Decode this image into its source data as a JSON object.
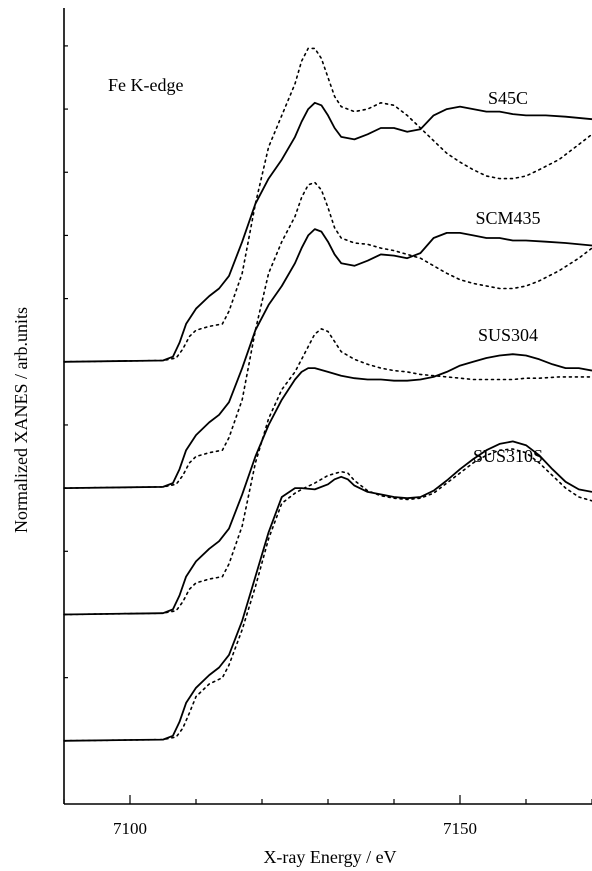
{
  "chart_data": {
    "type": "line",
    "annotation": "Fe K-edge",
    "xlabel": "X-ray Energy / eV",
    "ylabel": "Normalized XANES / arb.units",
    "xlim": [
      7090,
      7170
    ],
    "xticks": [
      7100,
      7150
    ],
    "ylim": [
      -0.5,
      5.8
    ],
    "grid": false,
    "samples": [
      {
        "name": "S45C",
        "offset": 3.0,
        "solid": {
          "x": [
            7090,
            7105,
            7106.5,
            7107.5,
            7108.5,
            7110,
            7112,
            7113.5,
            7115,
            7117,
            7119,
            7121,
            7123,
            7125,
            7126,
            7127,
            7128,
            7129,
            7130,
            7131,
            7132,
            7134,
            7136,
            7138,
            7140,
            7142,
            7144,
            7146,
            7148,
            7150,
            7152,
            7154,
            7156,
            7158,
            7160,
            7163,
            7166,
            7170
          ],
          "y": [
            0,
            0.01,
            0.04,
            0.15,
            0.3,
            0.42,
            0.52,
            0.58,
            0.68,
            0.95,
            1.25,
            1.45,
            1.6,
            1.78,
            1.9,
            2.0,
            2.05,
            2.03,
            1.95,
            1.85,
            1.78,
            1.76,
            1.8,
            1.85,
            1.85,
            1.82,
            1.84,
            1.95,
            2.0,
            2.02,
            2.0,
            1.98,
            1.98,
            1.96,
            1.95,
            1.95,
            1.94,
            1.92
          ]
        },
        "dotted": {
          "x": [
            7090,
            7105,
            7107,
            7108,
            7109,
            7110,
            7112,
            7114,
            7115,
            7117,
            7119,
            7121,
            7123,
            7125,
            7126,
            7127,
            7128,
            7129,
            7130,
            7131,
            7132,
            7134,
            7136,
            7138,
            7140,
            7142,
            7144,
            7146,
            7148,
            7150,
            7152,
            7154,
            7156,
            7158,
            7160,
            7162,
            7165,
            7168,
            7170
          ],
          "y": [
            0,
            0.01,
            0.03,
            0.1,
            0.2,
            0.25,
            0.28,
            0.3,
            0.4,
            0.7,
            1.25,
            1.7,
            1.95,
            2.2,
            2.38,
            2.48,
            2.48,
            2.4,
            2.25,
            2.1,
            2.02,
            1.98,
            2.0,
            2.05,
            2.03,
            1.95,
            1.85,
            1.75,
            1.65,
            1.58,
            1.52,
            1.47,
            1.45,
            1.45,
            1.47,
            1.52,
            1.6,
            1.72,
            1.8
          ]
        }
      },
      {
        "name": "SCM435",
        "offset": 2.0,
        "solid": {
          "x": [
            7090,
            7105,
            7106.5,
            7107.5,
            7108.5,
            7110,
            7112,
            7113.5,
            7115,
            7117,
            7119,
            7121,
            7123,
            7125,
            7126,
            7127,
            7128,
            7129,
            7130,
            7131,
            7132,
            7134,
            7136,
            7138,
            7140,
            7142,
            7144,
            7146,
            7148,
            7150,
            7152,
            7154,
            7156,
            7158,
            7160,
            7163,
            7166,
            7170
          ],
          "y": [
            0,
            0.01,
            0.04,
            0.15,
            0.3,
            0.42,
            0.52,
            0.58,
            0.68,
            0.95,
            1.25,
            1.45,
            1.6,
            1.78,
            1.9,
            2.0,
            2.05,
            2.03,
            1.95,
            1.85,
            1.78,
            1.76,
            1.8,
            1.85,
            1.84,
            1.82,
            1.86,
            1.98,
            2.02,
            2.02,
            2.0,
            1.98,
            1.98,
            1.96,
            1.96,
            1.95,
            1.94,
            1.92
          ]
        },
        "dotted": {
          "x": [
            7090,
            7105,
            7107,
            7108,
            7109,
            7110,
            7112,
            7114,
            7115,
            7117,
            7119,
            7121,
            7123,
            7125,
            7126,
            7127,
            7128,
            7129,
            7130,
            7131,
            7132,
            7134,
            7136,
            7138,
            7140,
            7142,
            7144,
            7146,
            7148,
            7150,
            7152,
            7154,
            7156,
            7158,
            7160,
            7162,
            7165,
            7168,
            7170
          ],
          "y": [
            0,
            0.01,
            0.03,
            0.1,
            0.2,
            0.25,
            0.28,
            0.3,
            0.4,
            0.7,
            1.25,
            1.7,
            1.95,
            2.15,
            2.3,
            2.4,
            2.42,
            2.36,
            2.22,
            2.06,
            1.98,
            1.94,
            1.93,
            1.9,
            1.88,
            1.85,
            1.82,
            1.76,
            1.7,
            1.65,
            1.62,
            1.6,
            1.58,
            1.58,
            1.6,
            1.64,
            1.72,
            1.82,
            1.9
          ]
        }
      },
      {
        "name": "SUS304",
        "offset": 1.0,
        "solid": {
          "x": [
            7090,
            7105,
            7106.5,
            7107.5,
            7108.5,
            7110,
            7112,
            7113.5,
            7115,
            7117,
            7119,
            7121,
            7123,
            7125,
            7126,
            7127,
            7128,
            7130,
            7132,
            7134,
            7136,
            7138,
            7140,
            7142,
            7144,
            7146,
            7148,
            7150,
            7152,
            7154,
            7156,
            7158,
            7160,
            7162,
            7164,
            7166,
            7168,
            7170
          ],
          "y": [
            0,
            0.01,
            0.04,
            0.15,
            0.3,
            0.42,
            0.52,
            0.58,
            0.68,
            0.95,
            1.25,
            1.5,
            1.7,
            1.86,
            1.92,
            1.95,
            1.95,
            1.92,
            1.89,
            1.87,
            1.86,
            1.86,
            1.85,
            1.85,
            1.86,
            1.88,
            1.92,
            1.97,
            2.0,
            2.03,
            2.05,
            2.06,
            2.05,
            2.02,
            1.98,
            1.95,
            1.95,
            1.93
          ]
        },
        "dotted": {
          "x": [
            7090,
            7105,
            7107,
            7108,
            7109,
            7110,
            7112,
            7114,
            7115,
            7117,
            7119,
            7121,
            7123,
            7125,
            7126,
            7127,
            7128,
            7129,
            7130,
            7131,
            7132,
            7134,
            7136,
            7138,
            7140,
            7142,
            7144,
            7146,
            7148,
            7150,
            7152,
            7154,
            7156,
            7158,
            7160,
            7162,
            7165,
            7168,
            7170
          ],
          "y": [
            0,
            0.01,
            0.03,
            0.1,
            0.2,
            0.25,
            0.28,
            0.3,
            0.4,
            0.7,
            1.2,
            1.55,
            1.78,
            1.92,
            2.02,
            2.12,
            2.22,
            2.26,
            2.24,
            2.16,
            2.08,
            2.02,
            1.98,
            1.95,
            1.93,
            1.92,
            1.9,
            1.89,
            1.88,
            1.87,
            1.86,
            1.86,
            1.86,
            1.86,
            1.87,
            1.87,
            1.88,
            1.88,
            1.88
          ]
        }
      },
      {
        "name": "SUS310S",
        "offset": 0.0,
        "solid": {
          "x": [
            7090,
            7105,
            7106.5,
            7107.5,
            7108.5,
            7110,
            7112,
            7113.5,
            7115,
            7117,
            7119,
            7121,
            7123,
            7125,
            7126,
            7128,
            7130,
            7131,
            7132,
            7133,
            7134,
            7136,
            7138,
            7140,
            7142,
            7144,
            7146,
            7148,
            7150,
            7152,
            7154,
            7156,
            7158,
            7160,
            7162,
            7164,
            7166,
            7168,
            7170
          ],
          "y": [
            0,
            0.01,
            0.04,
            0.15,
            0.3,
            0.42,
            0.52,
            0.58,
            0.68,
            0.95,
            1.3,
            1.65,
            1.93,
            2.0,
            2.0,
            1.99,
            2.03,
            2.07,
            2.09,
            2.07,
            2.02,
            1.97,
            1.95,
            1.93,
            1.92,
            1.93,
            1.98,
            2.06,
            2.15,
            2.23,
            2.3,
            2.35,
            2.37,
            2.34,
            2.26,
            2.15,
            2.05,
            1.99,
            1.97
          ]
        },
        "dotted": {
          "x": [
            7090,
            7105,
            7107,
            7108,
            7109,
            7110,
            7112,
            7114,
            7115,
            7117,
            7119,
            7121,
            7123,
            7125,
            7126,
            7128,
            7130,
            7132,
            7133,
            7134,
            7136,
            7138,
            7140,
            7142,
            7144,
            7146,
            7148,
            7150,
            7152,
            7154,
            7156,
            7158,
            7160,
            7162,
            7164,
            7166,
            7168,
            7170
          ],
          "y": [
            0,
            0.01,
            0.03,
            0.1,
            0.22,
            0.35,
            0.45,
            0.5,
            0.6,
            0.88,
            1.22,
            1.6,
            1.88,
            1.96,
            1.99,
            2.04,
            2.1,
            2.13,
            2.12,
            2.06,
            1.98,
            1.94,
            1.92,
            1.91,
            1.92,
            1.96,
            2.04,
            2.12,
            2.2,
            2.26,
            2.3,
            2.31,
            2.28,
            2.2,
            2.1,
            2.0,
            1.93,
            1.9
          ]
        }
      }
    ]
  }
}
